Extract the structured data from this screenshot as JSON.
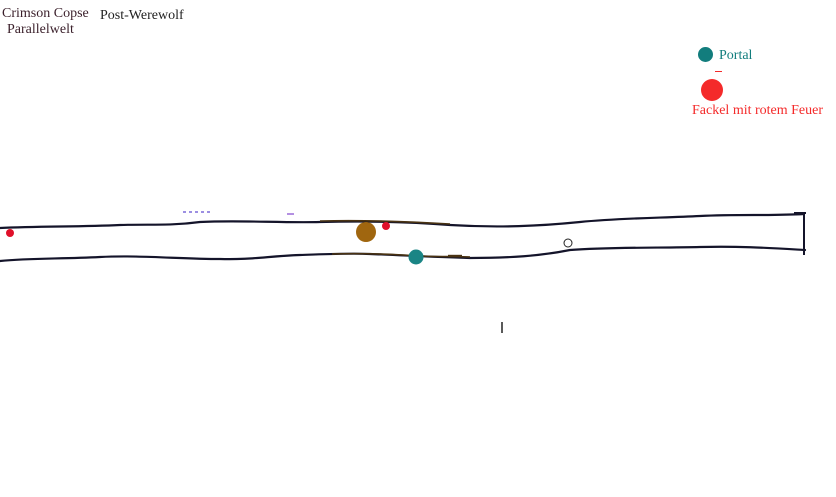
{
  "header": {
    "area_name": "Crimson Copse",
    "world_name": "Parallelwelt",
    "state_label": "Post-Werewolf"
  },
  "legend": {
    "portal": {
      "label": "Portal",
      "color": "#127d7d",
      "icon": "portal-marker-icon"
    },
    "torch": {
      "label": "Fackel mit rotem Feuer",
      "color": "#f42a2a",
      "icon": "torch-red-fire-icon"
    }
  },
  "map": {
    "path_color": "#14142a",
    "branch_color": "#4a3312",
    "markers": [
      {
        "type": "torch",
        "color": "#e0102a",
        "icon": "torch-marker-icon"
      },
      {
        "type": "item",
        "color": "#a0660f",
        "icon": "item-marker-icon"
      },
      {
        "type": "torch",
        "color": "#e0102a",
        "icon": "torch-marker-icon"
      },
      {
        "type": "portal",
        "color": "#1a8585",
        "icon": "portal-marker-icon"
      },
      {
        "type": "waypoint",
        "color": "#222222",
        "icon": "empty-waypoint-icon"
      }
    ]
  }
}
